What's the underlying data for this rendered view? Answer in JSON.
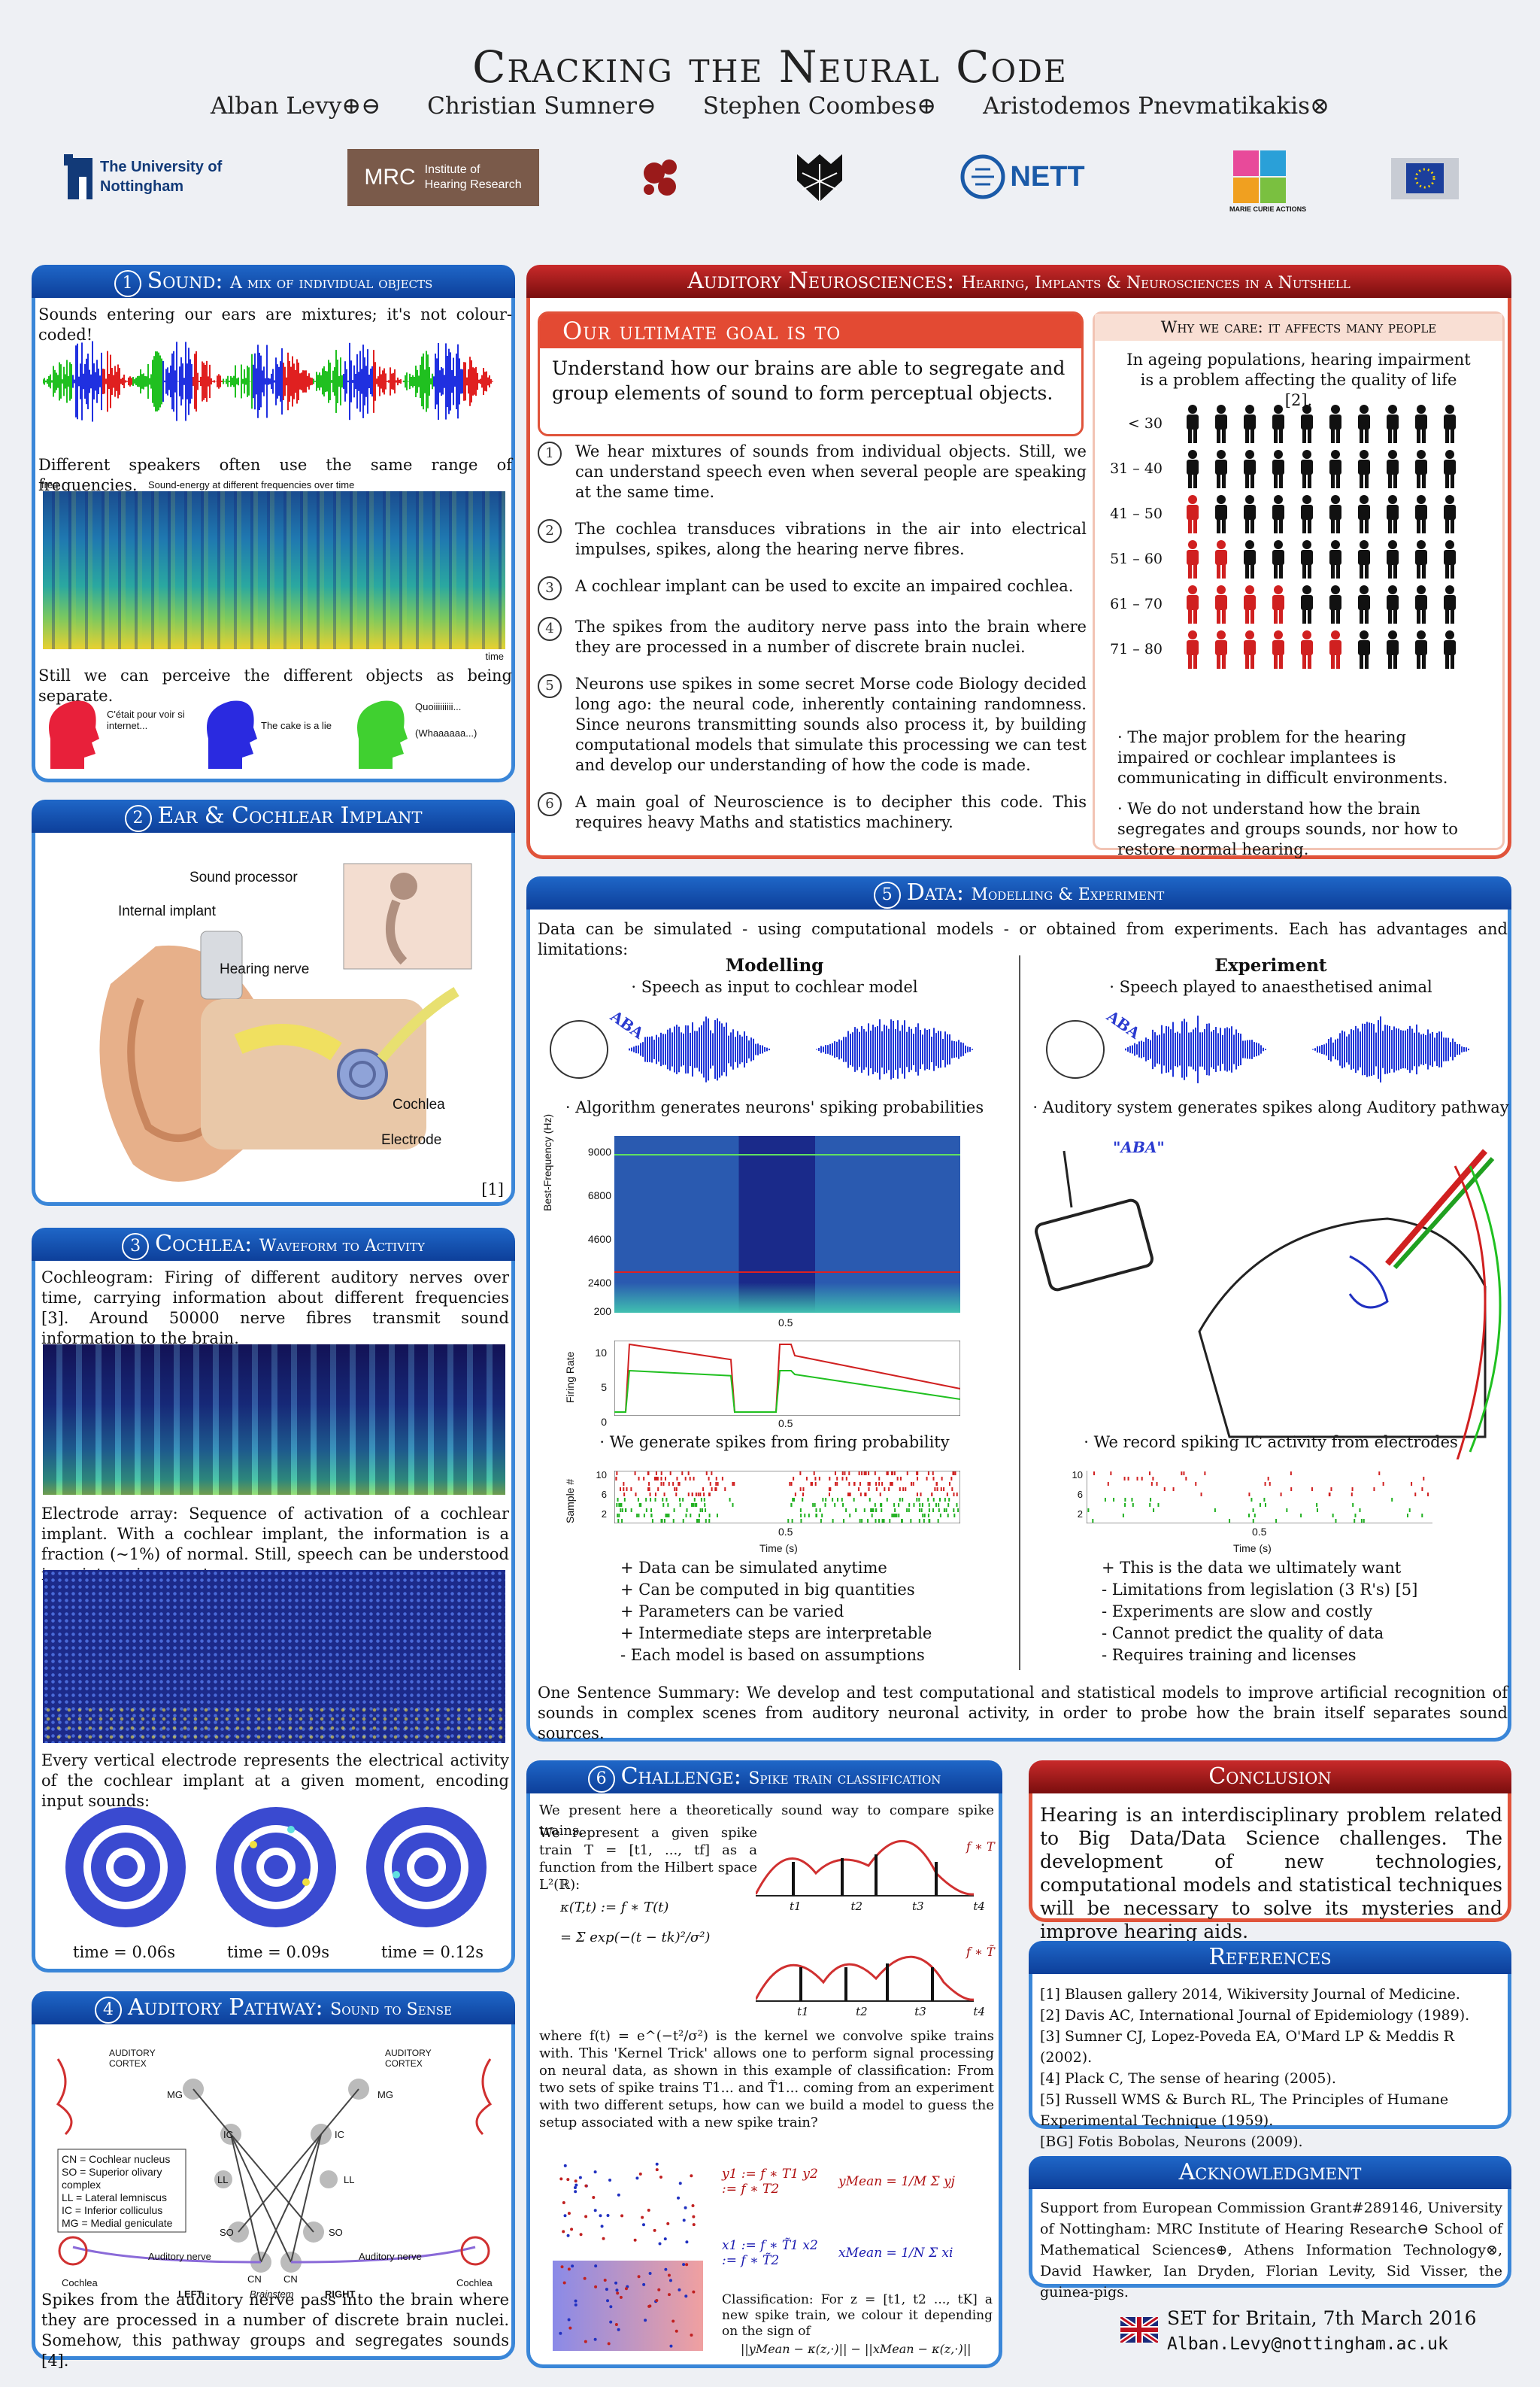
{
  "header": {
    "title": "Cracking the Neural Code",
    "authors": [
      "Alban Levy⊕⊖",
      "Christian Sumner⊖",
      "Stephen Coombes⊕",
      "Aristodemos Pnevmatikakis⊗"
    ],
    "logos": [
      "The University of Nottingham",
      "MRC",
      "Institute of Hearing Research",
      "NETT",
      "MARIE CURIE ACTIONS"
    ]
  },
  "sound": {
    "heading": "Sound:",
    "sub": "A mix of individual objects",
    "num": "1",
    "p1": "Sounds entering our ears are mixtures; it's not colour-coded!",
    "p2": "Different speakers often use the same range of frequencies.",
    "spec_y": "freq",
    "spec_title": "Sound-energy at different frequencies over time",
    "spec_x": "time",
    "p3": "Still we can perceive the different objects as being separate.",
    "q1": "C'était pour voir si internet...",
    "q2": "The cake is a lie",
    "q3": "Quoiiiiiiiii...",
    "q4": "(Whaaaaaa...)"
  },
  "ear": {
    "heading": "Ear & Cochlear Implant",
    "num": "2",
    "labels": [
      "Sound processor",
      "Internal implant",
      "Hearing nerve",
      "Cochlea",
      "Electrode"
    ],
    "ref": "[1]"
  },
  "cochlea": {
    "heading": "Cochlea:",
    "sub": "Waveform to Activity",
    "num": "3",
    "p1": "Cochleogram: Firing of different auditory nerves over time, carrying information about different frequencies [3]. Around 50000 nerve fibres transmit sound information to the brain.",
    "p2": "Electrode array: Sequence of activation of a cochlear implant. With a cochlear implant, the information is a fraction (~1%) of normal. Still, speech can be understood in quiet environment.",
    "p3": "Every vertical electrode represents the electrical activity of the cochlear implant at a given moment, encoding input sounds:",
    "times": [
      "time = 0.06s",
      "time = 0.09s",
      "time = 0.12s"
    ]
  },
  "pathway": {
    "heading": "Auditory Pathway:",
    "sub": "Sound to Sense",
    "num": "4",
    "legend": [
      "CN = Cochlear nucleus",
      "SO = Superior olivary complex",
      "LL = Lateral lemniscus",
      "IC = Inferior colliculus",
      "MG = Medial geniculate"
    ],
    "labels": [
      "AUDITORY CORTEX",
      "AUDITORY CORTEX",
      "MG",
      "MG",
      "IC",
      "IC",
      "LL",
      "LL",
      "SO",
      "SO",
      "CN",
      "CN",
      "Auditory nerve",
      "Auditory nerve",
      "Cochlea",
      "Cochlea",
      "LEFT",
      "Brainstem",
      "RIGHT"
    ],
    "p": "Spikes from the auditory nerve pass into the brain where they are processed in a number of discrete brain nuclei. Somehow, this pathway groups and segregates sounds [4]."
  },
  "neuro": {
    "heading": "Auditory Neurosciences:",
    "sub": "Hearing, Implants & Neurosciences in a Nutshell",
    "goal_title": "Our ultimate goal is to",
    "goal_text": "Understand how our brains are able to segregate and group elements of sound to form perceptual objects.",
    "items": [
      "We hear mixtures of sounds from individual objects. Still, we can understand speech even when several people are speaking at the same time.",
      "The cochlea transduces vibrations in the air into electrical impulses, spikes, along the hearing nerve fibres.",
      "A cochlear implant can be used to excite an impaired cochlea.",
      "The spikes from the auditory nerve pass into the brain where they are processed in a number of discrete brain nuclei.",
      "Neurons use spikes in some secret Morse code Biology decided long ago: the neural code, inherently containing randomness. Since neurons transmitting sounds also process it, by building computational models that simulate this processing we can test and develop our understanding of how the code is made.",
      "A main goal of Neuroscience is to decipher this code. This requires heavy Maths and statistics machinery."
    ],
    "care_title": "Why we care: it affects many people",
    "care_text": "In ageing populations, hearing impairment is a problem affecting the quality of life [2].",
    "age_rows": [
      "< 30",
      "31 – 40",
      "41 – 50",
      "51 – 60",
      "61 – 70",
      "71 – 80"
    ],
    "impaired_of_10": [
      0,
      0,
      1,
      2,
      4,
      6
    ],
    "care_b1": "· The major problem for the hearing impaired or cochlear implantees is communicating in difficult environments.",
    "care_b2": "· We do not understand how the brain segregates and groups sounds, nor how to restore normal hearing."
  },
  "data": {
    "heading": "Data:",
    "sub": "Modelling & Experiment",
    "num": "5",
    "intro": "Data can be simulated - using computational models - or obtained from experiments. Each has advantages and limitations:",
    "m_title": "Modelling",
    "e_title": "Experiment",
    "m1": "· Speech as input to cochlear model",
    "e1": "· Speech played to anaesthetised animal",
    "aba": "ABA",
    "aba_q": "\"ABA\"",
    "m2": "· Algorithm generates neurons' spiking probabilities",
    "e2": "· Auditory system generates spikes along Auditory pathway",
    "m3": "· We generate spikes from firing probability",
    "e3": "· We record spiking IC activity from electrodes",
    "bf_label": "Best-Frequency (Hz)",
    "bf_ticks": [
      "9000",
      "6800",
      "4600",
      "2400",
      "200"
    ],
    "fr_label": "Firing Rate",
    "fr_ticks": [
      "10",
      "5",
      "0"
    ],
    "sn_label": "Sample #",
    "sn_ticks": [
      "10",
      "6",
      "2"
    ],
    "half": "0.5",
    "time_label": "Time (s)",
    "pros_m": [
      "+ Data can be simulated anytime",
      "+ Can be computed in big quantities",
      "+ Parameters can be varied",
      "+ Intermediate steps are interpretable",
      "- Each model is based on assumptions"
    ],
    "pros_e": [
      "+ This is the data we ultimately want",
      "- Limitations from legislation (3 R's) [5]",
      "- Experiments are slow and costly",
      "- Cannot predict the quality of data",
      "- Requires training and licenses"
    ],
    "summary": "One Sentence Summary: We develop and test computational and statistical models to improve artificial recognition of sounds in complex scenes from auditory neuronal activity, in order to probe how the brain itself separates sound sources."
  },
  "challenge": {
    "heading": "Challenge:",
    "sub": "Spike train classification",
    "num": "6",
    "intro": "We present here a theoretically sound way to compare spike trains.",
    "p1": "We represent a given spike train T = [t1, ..., tf] as a function from the Hilbert space L²(ℝ):",
    "f1": "κ(T,t) := f ∗ T(t)",
    "f2": "= Σ exp(−(t − tk)²/σ²)",
    "p2": "where f(t) = e^(−t²/σ²) is the kernel we convolve spike trains with. This 'Kernel Trick' allows one to perform signal processing on neural data, as shown in this example of classification: From two sets of spike trains T1... and T̃1... coming from an experiment with two different setups, how can we build a model to guess the setup associated with a new spike train?",
    "fT": "f ∗ T",
    "fT2": "f ∗ T̃",
    "tk": [
      "t1",
      "t2",
      "t3",
      "t4"
    ],
    "y": "y1 := f ∗ T1   y2 := f ∗ T2",
    "ym": "yMean = 1/M Σ yj",
    "x": "x1 := f ∗ T̃1   x2 := f ∗ T̃2",
    "xm": "xMean = 1/N Σ xi",
    "class": "Classification: For z = [t1, t2 ..., tK] a new spike train, we colour it depending on the sign of",
    "norm": "||yMean − κ(z,·)|| − ||xMean − κ(z,·)||"
  },
  "conclusion": {
    "heading": "Conclusion",
    "text": "Hearing is an interdisciplinary problem related to Big Data/Data Science challenges. The development of new technologies, computational models and statistical techniques will be necessary to solve its mysteries and improve hearing aids."
  },
  "references": {
    "heading": "References",
    "items": [
      "[1] Blausen gallery 2014, Wikiversity Journal of Medicine.",
      "[2] Davis AC, International Journal of Epidemiology (1989).",
      "[3] Sumner CJ, Lopez-Poveda EA, O'Mard LP & Meddis R (2002).",
      "[4] Plack C, The sense of hearing (2005).",
      "[5] Russell WMS & Burch RL, The Principles of Humane Experimental Technique (1959).",
      "[BG] Fotis Bobolas, Neurons (2009)."
    ]
  },
  "ack": {
    "heading": "Acknowledgment",
    "text": "Support from European Commission Grant#289146, University of Nottingham: MRC Institute of Hearing Research⊖ School of Mathematical Sciences⊕, Athens Information Technology⊗, David Hawker, Ian Dryden, Florian Levity, Sid Visser, the guinea-pigs."
  },
  "footer": {
    "event": "SET for Britain, 7th March 2016",
    "email": "Alban.Levy@nottingham.ac.uk"
  }
}
